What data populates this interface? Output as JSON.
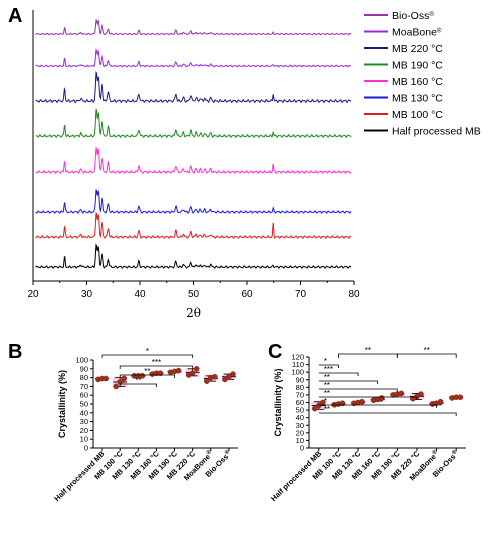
{
  "panels": {
    "A": "A",
    "B": "B",
    "C": "C"
  },
  "chart_data": [
    {
      "panel": "A",
      "type": "line",
      "xlabel": "2θ",
      "xlim": [
        20,
        80
      ],
      "xticks": [
        "20",
        "30",
        "40",
        "50",
        "60",
        "70",
        "80"
      ],
      "legend_position": "right",
      "series": [
        {
          "name": "Bio-Oss",
          "sup": "®",
          "color": "#9b2fae",
          "peak65": 0.2
        },
        {
          "name": "MoaBone",
          "sup": "®",
          "color": "#9c27e0",
          "peak65": 0.2
        },
        {
          "name": "MB 220 °C",
          "sup": "",
          "color": "#1a1a80",
          "peak65": 0.5
        },
        {
          "name": "MB 190 °C",
          "sup": "",
          "color": "#1e8c1e",
          "peak65": 0.3
        },
        {
          "name": "MB 160 °C",
          "sup": "",
          "color": "#ff2fd6",
          "peak65": 0.6
        },
        {
          "name": "MB 130 °C",
          "sup": "",
          "color": "#1a1ae6",
          "peak65": 0.3
        },
        {
          "name": "MB 100 °C",
          "sup": "",
          "color": "#e61a1a",
          "peak65": 1.0
        },
        {
          "name": "Half processed MB",
          "sup": "",
          "color": "#000000",
          "peak65": 0.15
        }
      ],
      "peaks": [
        {
          "x": 25.9,
          "h": 0.45,
          "w": 0.15
        },
        {
          "x": 28.9,
          "h": 0.1,
          "w": 0.2
        },
        {
          "x": 31.8,
          "h": 1.0,
          "w": 0.2
        },
        {
          "x": 32.2,
          "h": 0.9,
          "w": 0.2
        },
        {
          "x": 32.9,
          "h": 0.6,
          "w": 0.2
        },
        {
          "x": 34.1,
          "h": 0.35,
          "w": 0.2
        },
        {
          "x": 39.8,
          "h": 0.25,
          "w": 0.2
        },
        {
          "x": 46.7,
          "h": 0.25,
          "w": 0.2
        },
        {
          "x": 48.1,
          "h": 0.12,
          "w": 0.2
        },
        {
          "x": 49.5,
          "h": 0.22,
          "w": 0.2
        },
        {
          "x": 50.5,
          "h": 0.12,
          "w": 0.2
        },
        {
          "x": 51.3,
          "h": 0.1,
          "w": 0.2
        },
        {
          "x": 52.1,
          "h": 0.1,
          "w": 0.2
        },
        {
          "x": 53.2,
          "h": 0.12,
          "w": 0.2
        }
      ]
    },
    {
      "panel": "B",
      "type": "scatter",
      "ylabel": "Crystallinity (%)",
      "ylim": [
        0,
        100
      ],
      "yticks": [
        "0",
        "10",
        "20",
        "30",
        "40",
        "50",
        "60",
        "70",
        "80",
        "90",
        "100"
      ],
      "categories": [
        {
          "label": "Half processed MB",
          "sup": ""
        },
        {
          "label": "MB 100 °C",
          "sup": ""
        },
        {
          "label": "MB 130 °C",
          "sup": ""
        },
        {
          "label": "MB 160 °C",
          "sup": ""
        },
        {
          "label": "MB 190 °C",
          "sup": ""
        },
        {
          "label": "MB 220 °C",
          "sup": ""
        },
        {
          "label": "MoaBone",
          "sup": "®"
        },
        {
          "label": "Bio-Oss",
          "sup": "®"
        }
      ],
      "values": [
        [
          78,
          79,
          79
        ],
        [
          70,
          75,
          79
        ],
        [
          82,
          82,
          82
        ],
        [
          84,
          85,
          85
        ],
        [
          86,
          87,
          88
        ],
        [
          83,
          85,
          90
        ],
        [
          76,
          80,
          81
        ],
        [
          78,
          81,
          84
        ]
      ],
      "means": [
        79,
        75,
        82,
        85,
        87,
        86,
        79,
        81
      ],
      "err": [
        1,
        5,
        0.5,
        1,
        1,
        4,
        3,
        3
      ],
      "brackets": [
        {
          "from": 0,
          "to": 5,
          "label": "*"
        },
        {
          "from": 1,
          "to": 5,
          "label": "***"
        },
        {
          "from": 1,
          "to": 4,
          "label": "**"
        },
        {
          "from": 1,
          "to": 3,
          "label": "**"
        }
      ]
    },
    {
      "panel": "C",
      "type": "scatter",
      "ylabel": "Crystallinity (%)",
      "ylim": [
        0,
        120
      ],
      "yticks": [
        "0",
        "10",
        "20",
        "30",
        "40",
        "50",
        "60",
        "70",
        "80",
        "90",
        "100",
        "110",
        "120"
      ],
      "categories": [
        {
          "label": "Half processed MB",
          "sup": ""
        },
        {
          "label": "MB 100 °C",
          "sup": ""
        },
        {
          "label": "MB 130 °C",
          "sup": ""
        },
        {
          "label": "MB 160 °C",
          "sup": ""
        },
        {
          "label": "MB 190 °C",
          "sup": ""
        },
        {
          "label": "MB 220 °C",
          "sup": ""
        },
        {
          "label": "MoaBone",
          "sup": "®"
        },
        {
          "label": "Bio-Oss",
          "sup": "®"
        }
      ],
      "values": [
        [
          52,
          56,
          60
        ],
        [
          57,
          58,
          59
        ],
        [
          59,
          60,
          61
        ],
        [
          63,
          64,
          66
        ],
        [
          70,
          71,
          72
        ],
        [
          65,
          68,
          71
        ],
        [
          58,
          59,
          61
        ],
        [
          66,
          67,
          67
        ]
      ],
      "means": [
        56,
        58,
        60,
        64,
        71,
        68,
        59,
        67
      ],
      "err": [
        5,
        1.5,
        1,
        2,
        1.5,
        4,
        2,
        1
      ],
      "brackets": [
        {
          "from": 0,
          "to": 1,
          "label": "*"
        },
        {
          "from": 0,
          "to": 2,
          "label": "***"
        },
        {
          "from": 0,
          "to": 3,
          "label": "**"
        },
        {
          "from": 0,
          "to": 4,
          "label": "**"
        },
        {
          "from": 0,
          "to": 5,
          "label": "**"
        },
        {
          "from": 0,
          "to": 6,
          "label": "*"
        },
        {
          "from": 0,
          "to": 7,
          "label": "**"
        }
      ],
      "top_brackets": [
        {
          "from": 4,
          "to": 7,
          "label": "**"
        },
        {
          "from": 1,
          "to": 4,
          "label": "**"
        }
      ]
    }
  ]
}
